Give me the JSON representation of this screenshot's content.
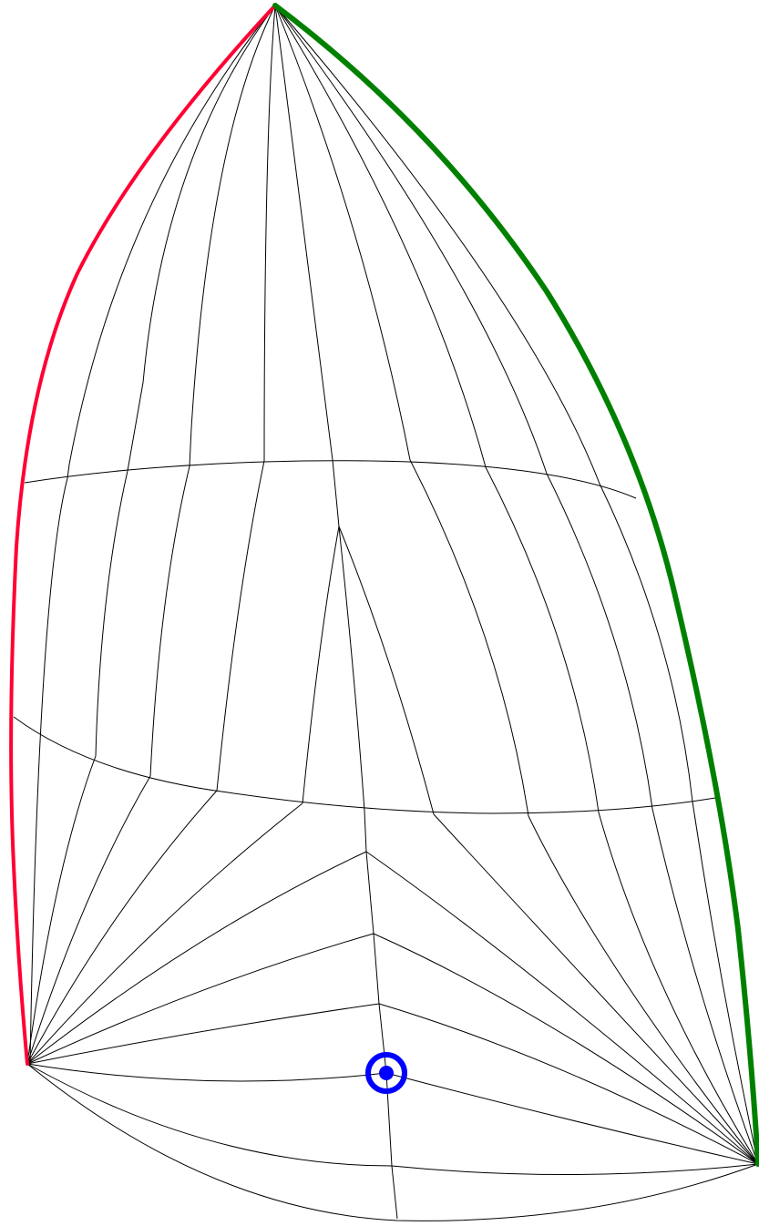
{
  "diagram": {
    "type": "sail-panel-layout",
    "colors": {
      "luff": "#ff0033",
      "leech": "#008000",
      "seams": "#000000",
      "marker": "#0000ff",
      "background": "#ffffff"
    },
    "corners": [
      "head",
      "tack",
      "clew"
    ],
    "edges": [
      "luff",
      "leech",
      "foot"
    ],
    "panel_sections": 3,
    "radial_seams_head": 9,
    "radial_seams_tack": 8,
    "radial_seams_clew": 8,
    "marker": {
      "icon": "target-ring-icon"
    }
  }
}
